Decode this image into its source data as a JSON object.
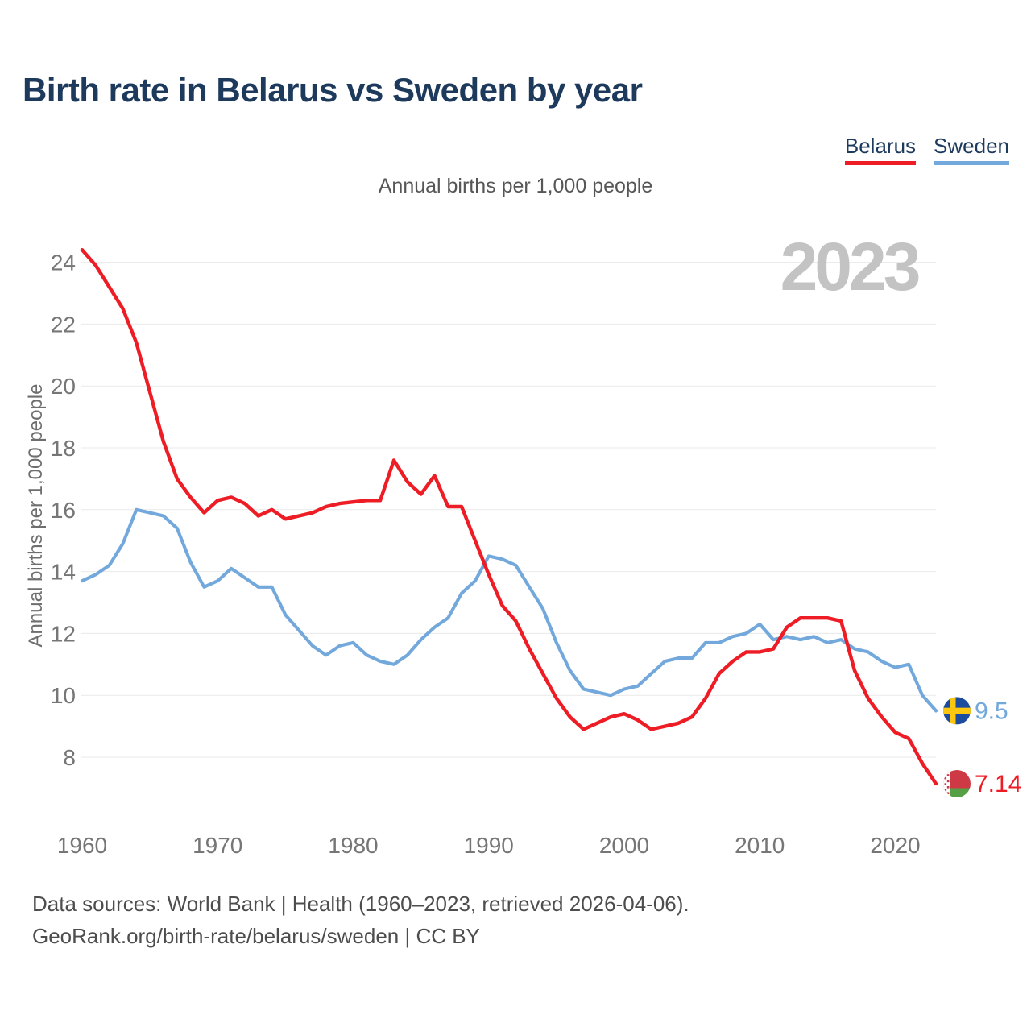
{
  "page": {
    "title": "Birth rate in Belarus vs Sweden by year",
    "subtitle": "Annual births per 1,000 people",
    "watermark": "2023",
    "y_axis_label": "Annual births per 1,000 people",
    "footer_line1": "Data sources: World Bank | Health (1960–2023, retrieved 2026-04-06).",
    "footer_line2": "GeoRank.org/birth-rate/belarus/sweden | CC BY"
  },
  "chart_data": {
    "type": "line",
    "title": "Birth rate in Belarus vs Sweden by year",
    "ylabel": "Annual births per 1,000 people",
    "xlabel": "",
    "grid": "horizontal",
    "legend_position": "top-right",
    "ylim": [
      7,
      24.5
    ],
    "y_ticks": [
      8,
      10,
      12,
      14,
      16,
      18,
      20,
      22,
      24
    ],
    "x_ticks": [
      1960,
      1970,
      1980,
      1990,
      2000,
      2010,
      2020
    ],
    "x": [
      1960,
      1961,
      1962,
      1963,
      1964,
      1965,
      1966,
      1967,
      1968,
      1969,
      1970,
      1971,
      1972,
      1973,
      1974,
      1975,
      1976,
      1977,
      1978,
      1979,
      1980,
      1981,
      1982,
      1983,
      1984,
      1985,
      1986,
      1987,
      1988,
      1989,
      1990,
      1991,
      1992,
      1993,
      1994,
      1995,
      1996,
      1997,
      1998,
      1999,
      2000,
      2001,
      2002,
      2003,
      2004,
      2005,
      2006,
      2007,
      2008,
      2009,
      2010,
      2011,
      2012,
      2013,
      2014,
      2015,
      2016,
      2017,
      2018,
      2019,
      2020,
      2021,
      2022,
      2023
    ],
    "series": [
      {
        "name": "Belarus",
        "color": "#ee1c25",
        "end_label": "7.14",
        "end_value": 7.14,
        "values": [
          24.4,
          23.9,
          23.2,
          22.5,
          21.4,
          19.8,
          18.2,
          17.0,
          16.4,
          15.9,
          16.3,
          16.4,
          16.2,
          15.8,
          16.0,
          15.7,
          15.8,
          15.9,
          16.1,
          16.2,
          16.25,
          16.3,
          16.3,
          17.6,
          16.9,
          16.5,
          17.1,
          16.1,
          16.1,
          15.0,
          13.9,
          12.9,
          12.4,
          11.5,
          10.7,
          9.9,
          9.3,
          8.9,
          9.1,
          9.3,
          9.4,
          9.2,
          8.9,
          9.0,
          9.1,
          9.3,
          9.9,
          10.7,
          11.1,
          11.4,
          11.4,
          11.5,
          12.2,
          12.5,
          12.5,
          12.5,
          12.4,
          10.8,
          9.9,
          9.3,
          8.8,
          8.6,
          7.8,
          7.14
        ]
      },
      {
        "name": "Sweden",
        "color": "#72a8db",
        "end_label": "9.5",
        "end_value": 9.5,
        "values": [
          13.7,
          13.9,
          14.2,
          14.9,
          16.0,
          15.9,
          15.8,
          15.4,
          14.3,
          13.5,
          13.7,
          14.1,
          13.8,
          13.5,
          13.5,
          12.6,
          12.1,
          11.6,
          11.3,
          11.6,
          11.7,
          11.3,
          11.1,
          11.0,
          11.3,
          11.8,
          12.2,
          12.5,
          13.3,
          13.7,
          14.5,
          14.4,
          14.2,
          13.5,
          12.8,
          11.7,
          10.8,
          10.2,
          10.1,
          10.0,
          10.2,
          10.3,
          10.7,
          11.1,
          11.2,
          11.2,
          11.7,
          11.7,
          11.9,
          12.0,
          12.3,
          11.8,
          11.9,
          11.8,
          11.9,
          11.7,
          11.8,
          11.5,
          11.4,
          11.1,
          10.9,
          11.0,
          10.0,
          9.5
        ]
      }
    ]
  }
}
